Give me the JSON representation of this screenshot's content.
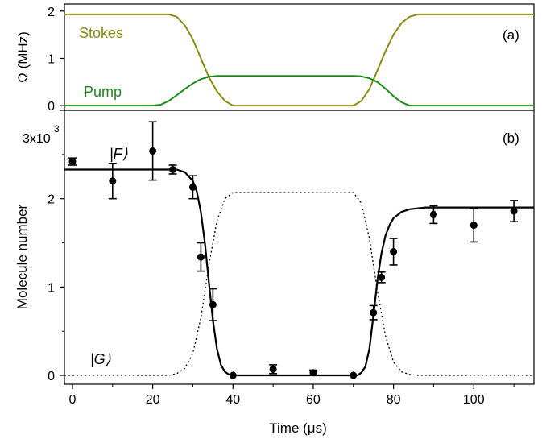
{
  "chart_data": [
    {
      "panel": "(a)",
      "type": "line",
      "xlabel": "",
      "ylabel": "Ω (MHz)",
      "xlim": [
        -2,
        115
      ],
      "ylim": [
        -0.1,
        2.15
      ],
      "yticks": [
        "0",
        "1",
        "2"
      ],
      "colors": {
        "stokes": "#8b8b12",
        "pump": "#1a8a1a"
      },
      "series": [
        {
          "name": "Stokes",
          "x": [
            -2,
            24,
            26,
            28,
            30,
            32,
            34,
            36,
            38,
            40,
            70,
            72,
            74,
            76,
            78,
            80,
            82,
            84,
            86,
            115
          ],
          "values": [
            1.93,
            1.93,
            1.88,
            1.7,
            1.4,
            1.0,
            0.6,
            0.3,
            0.1,
            0.0,
            0.0,
            0.1,
            0.35,
            0.75,
            1.15,
            1.5,
            1.75,
            1.88,
            1.93,
            1.93
          ]
        },
        {
          "name": "Pump",
          "x": [
            -2,
            20,
            22,
            24,
            26,
            28,
            30,
            32,
            34,
            36,
            38,
            70,
            72,
            74,
            76,
            78,
            80,
            82,
            84,
            115
          ],
          "values": [
            0.0,
            0.0,
            0.02,
            0.1,
            0.22,
            0.35,
            0.47,
            0.56,
            0.61,
            0.63,
            0.63,
            0.63,
            0.62,
            0.58,
            0.5,
            0.36,
            0.2,
            0.07,
            0.0,
            0.0
          ]
        }
      ]
    },
    {
      "panel": "(b)",
      "type": "scatter",
      "xlabel": "Time (μs)",
      "ylabel": "Molecule number",
      "xlim": [
        -2,
        115
      ],
      "ylim": [
        -0.1,
        3.0
      ],
      "xticks": [
        "0",
        "20",
        "40",
        "60",
        "80",
        "100"
      ],
      "yticks": [
        "0",
        "1",
        "2"
      ],
      "y_exponent_label": {
        "base": "3x10",
        "exponent": "3"
      },
      "annotations": {
        "F": "|F⟩",
        "G": "|G⟩"
      },
      "points": {
        "x": [
          0,
          10,
          20,
          25,
          30,
          32,
          35,
          40,
          50,
          60,
          70,
          75,
          77,
          80,
          90,
          100,
          110
        ],
        "y": [
          2.42,
          2.2,
          2.54,
          2.33,
          2.13,
          1.34,
          0.8,
          0.0,
          0.07,
          0.03,
          0.0,
          0.71,
          1.11,
          1.4,
          1.82,
          1.7,
          1.86
        ],
        "err": [
          0.04,
          0.2,
          0.33,
          0.05,
          0.13,
          0.16,
          0.18,
          0.0,
          0.05,
          0.03,
          0.0,
          0.08,
          0.06,
          0.15,
          0.1,
          0.19,
          0.12
        ]
      },
      "series": [
        {
          "name": "|F⟩",
          "style": "solid",
          "x": [
            -2,
            26,
            28,
            30,
            31,
            32,
            33,
            34,
            35,
            36,
            37,
            38,
            39,
            40,
            71,
            72,
            73,
            74,
            75,
            76,
            77,
            78,
            79,
            80,
            82,
            84,
            86,
            88,
            115
          ],
          "values": [
            2.33,
            2.33,
            2.3,
            2.2,
            2.08,
            1.85,
            1.5,
            1.05,
            0.62,
            0.3,
            0.12,
            0.04,
            0.01,
            0.0,
            0.0,
            0.03,
            0.1,
            0.3,
            0.68,
            1.08,
            1.38,
            1.58,
            1.7,
            1.78,
            1.85,
            1.88,
            1.89,
            1.9,
            1.9
          ]
        },
        {
          "name": "|G⟩",
          "style": "dotted",
          "x": [
            -2,
            24,
            26,
            28,
            30,
            32,
            34,
            36,
            38,
            40,
            70,
            72,
            74,
            76,
            78,
            80,
            82,
            84,
            86,
            115
          ],
          "values": [
            0.0,
            0.0,
            0.02,
            0.08,
            0.25,
            0.65,
            1.25,
            1.75,
            2.0,
            2.07,
            2.07,
            1.95,
            1.55,
            0.95,
            0.45,
            0.15,
            0.04,
            0.01,
            0.0,
            0.0
          ]
        }
      ]
    }
  ]
}
